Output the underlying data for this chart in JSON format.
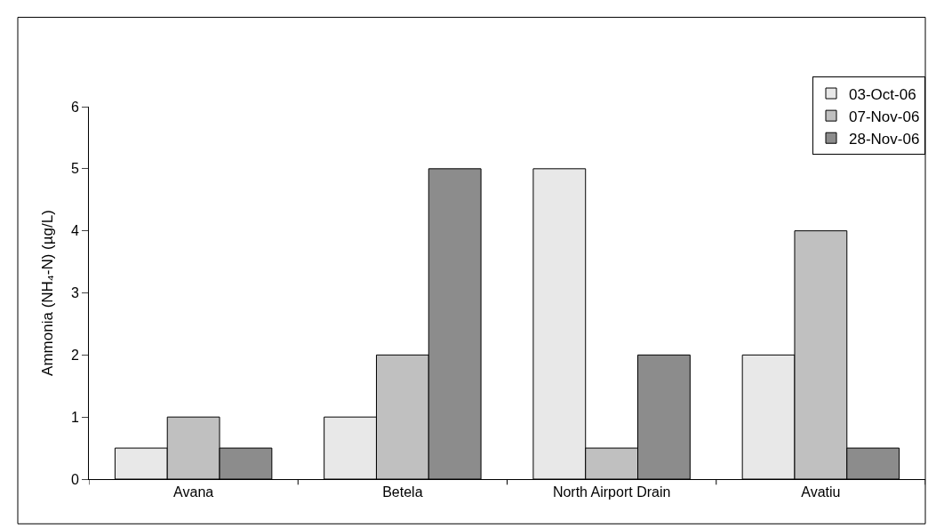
{
  "chart_data": {
    "type": "bar",
    "ylabel": "Ammonia (NH₄-N) (µg/L)",
    "categories": [
      "Avana",
      "Betela",
      "North Airport Drain",
      "Avatiu"
    ],
    "series": [
      {
        "name": "03-Oct-06",
        "color": "#e8e8e8",
        "values": [
          0.5,
          1,
          5,
          2
        ]
      },
      {
        "name": "07-Nov-06",
        "color": "#c0c0c0",
        "values": [
          1,
          2,
          0.5,
          4
        ]
      },
      {
        "name": "28-Nov-06",
        "color": "#8c8c8c",
        "values": [
          0.5,
          5,
          2,
          0.5
        ]
      }
    ],
    "ylim": [
      0,
      6
    ],
    "yticks": [
      0,
      1,
      2,
      3,
      4,
      5,
      6
    ],
    "grid": false,
    "legend": "top right"
  }
}
